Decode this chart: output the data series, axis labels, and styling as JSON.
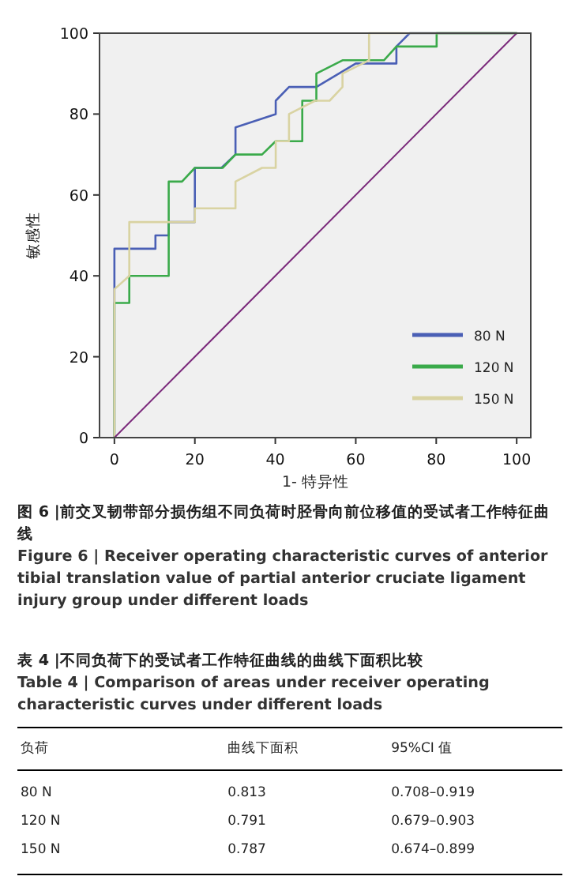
{
  "chart_data": {
    "type": "line",
    "xlabel": "1- 特异性",
    "ylabel": "敏感性",
    "xlim": [
      -3.7,
      103.5
    ],
    "ylim": [
      0,
      100
    ],
    "xticks": [
      0,
      20,
      40,
      60,
      80,
      100
    ],
    "yticks": [
      0,
      20,
      40,
      60,
      80,
      100
    ],
    "grid": false,
    "legend": "bottom right",
    "marker": "none",
    "line_style": "solid",
    "series": [
      {
        "name": "80 N",
        "color": "#4a5fb5",
        "x": [
          0,
          0,
          10.2,
          10.2,
          13.5,
          13.5,
          20,
          20,
          26.6,
          30.1,
          30.1,
          40.1,
          40.1,
          43.4,
          50.2,
          60,
          70.1,
          70.1,
          73.4,
          100
        ],
        "values": [
          0,
          46.7,
          46.7,
          50,
          50,
          53.3,
          53.3,
          66.7,
          66.7,
          70,
          76.7,
          80,
          83.3,
          86.7,
          86.7,
          92.5,
          92.5,
          96.7,
          100,
          100
        ]
      },
      {
        "name": "120 N",
        "color": "#3aaa4a",
        "x": [
          0,
          0,
          3.7,
          3.7,
          13.5,
          13.5,
          16.8,
          20,
          26.9,
          30.1,
          36.7,
          40.1,
          46.7,
          46.7,
          50.2,
          50.2,
          56.7,
          67,
          70.1,
          80.1,
          80.1,
          100
        ],
        "values": [
          0,
          33.3,
          33.3,
          40,
          40,
          63.3,
          63.3,
          66.7,
          66.7,
          70,
          70,
          73.3,
          73.3,
          83.3,
          83.3,
          90,
          93.3,
          93.3,
          96.7,
          96.7,
          100,
          100
        ]
      },
      {
        "name": "150 N",
        "color": "#d9d3a2",
        "x": [
          0,
          0,
          3.7,
          3.7,
          20,
          20,
          30.1,
          30.1,
          36.7,
          40.1,
          40.1,
          43.4,
          43.4,
          49.9,
          53.5,
          56.7,
          56.7,
          63.3,
          63.3,
          100
        ],
        "values": [
          0,
          36.7,
          40,
          53.3,
          53.3,
          56.7,
          56.7,
          63.3,
          66.7,
          66.7,
          73.3,
          73.3,
          80,
          83.3,
          83.3,
          86.7,
          90,
          93.3,
          100,
          100
        ]
      },
      {
        "color": "#7b2a7b",
        "x": [
          0,
          100
        ],
        "values": [
          0,
          100
        ]
      }
    ],
    "annotations": [
      "图 6 |前交叉韧带部分损伤组不同负荷时胫骨向前位移值的受试者工作特征曲线",
      "Figure 6 | Receiver operating characteristic curves of anterior tibial translation value of partial anterior cruciate ligament injury group under different loads",
      "表 4 |不同负荷下的受试者工作特征曲线的曲线下面积比较",
      "Table 4 | Comparison of areas under receiver operating characteristic curves under different loads",
      "负荷",
      "曲线下面积",
      "95%CI 值",
      "80 N",
      "0.813",
      "0.708–0.919",
      "120 N",
      "0.791",
      "0.679–0.903",
      "150 N",
      "0.787",
      "0.674–0.899"
    ]
  }
}
